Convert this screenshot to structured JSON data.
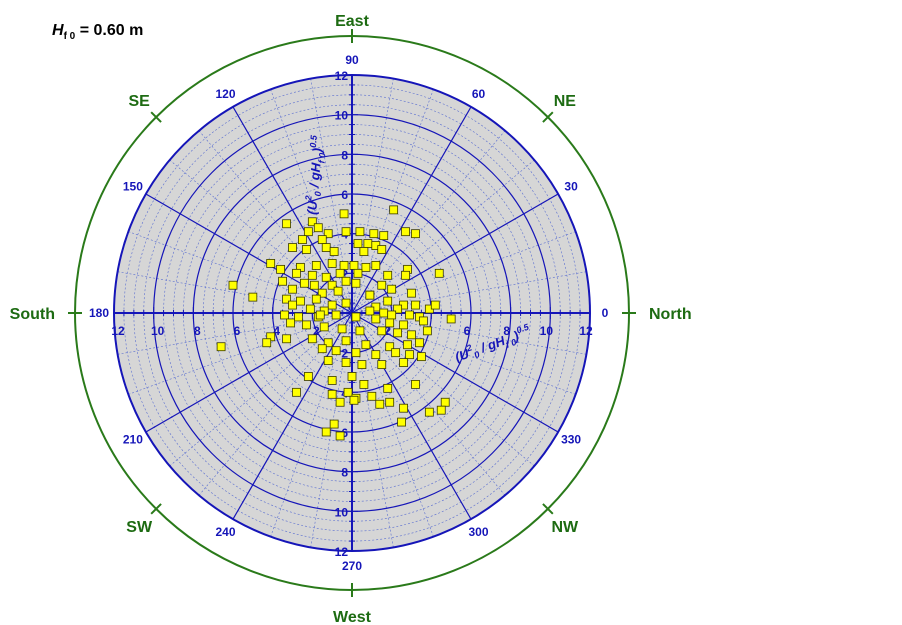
{
  "header": {
    "h_symbol": "H",
    "h_sub": "f 0",
    "h_value": "= 0.60 m"
  },
  "chart_data": {
    "type": "scatter",
    "coordinate_system": "polar",
    "title": "",
    "radial_axis_label": "(U²₀ / gH_f0)^0.5",
    "radial_range": [
      0,
      12
    ],
    "radial_major_ticks": [
      2,
      4,
      6,
      8,
      10,
      12
    ],
    "radial_tick_labels": [
      "2",
      "4",
      "6",
      "8",
      "10",
      "12"
    ],
    "radial_minor_step": 0.5,
    "angle_ticks": [
      0,
      30,
      60,
      90,
      120,
      150,
      180,
      210,
      240,
      270,
      300,
      330
    ],
    "angle_tick_labels": [
      "0",
      "30",
      "60",
      "90",
      "120",
      "150",
      "180",
      "210",
      "240",
      "270",
      "300",
      "330"
    ],
    "angle_minor_step": 10,
    "compass": [
      {
        "label": "North",
        "angle": 0
      },
      {
        "label": "NE",
        "angle": 45
      },
      {
        "label": "East",
        "angle": 90
      },
      {
        "label": "SE",
        "angle": 135
      },
      {
        "label": "South",
        "angle": 180
      },
      {
        "label": "SW",
        "angle": 225
      },
      {
        "label": "West",
        "angle": 270
      },
      {
        "label": "NW",
        "angle": 315
      }
    ],
    "grid": true,
    "colors": {
      "background_fill": "#d6d6d6",
      "major_grid": "#1515b8",
      "minor_grid": "#5a6ed0",
      "compass_ring": "#2a7a1a",
      "compass_label": "#1d6b12",
      "marker_fill": "#ffff00",
      "marker_stroke": "#3a3a00"
    },
    "series": [
      {
        "marker": "square",
        "points": [
          {
            "x": 2.1,
            "y": 5.2
          },
          {
            "x": -0.4,
            "y": 5.0
          },
          {
            "x": -2.0,
            "y": 4.6
          },
          {
            "x": -3.3,
            "y": 4.5
          },
          {
            "x": -1.7,
            "y": 4.3
          },
          {
            "x": -2.2,
            "y": 4.1
          },
          {
            "x": -1.2,
            "y": 4.0
          },
          {
            "x": -0.3,
            "y": 4.1
          },
          {
            "x": 0.4,
            "y": 4.1
          },
          {
            "x": 1.1,
            "y": 4.0
          },
          {
            "x": 1.6,
            "y": 3.9
          },
          {
            "x": 3.2,
            "y": 4.0
          },
          {
            "x": 2.7,
            "y": 4.1
          },
          {
            "x": -1.5,
            "y": 3.7
          },
          {
            "x": -2.5,
            "y": 3.7
          },
          {
            "x": 0.8,
            "y": 3.5
          },
          {
            "x": 1.2,
            "y": 3.4
          },
          {
            "x": 0.3,
            "y": 3.5
          },
          {
            "x": -3.0,
            "y": 3.3
          },
          {
            "x": -2.3,
            "y": 3.2
          },
          {
            "x": -1.3,
            "y": 3.3
          },
          {
            "x": -0.9,
            "y": 3.1
          },
          {
            "x": 0.6,
            "y": 3.1
          },
          {
            "x": 1.5,
            "y": 3.2
          },
          {
            "x": -4.1,
            "y": 2.5
          },
          {
            "x": -3.6,
            "y": 2.2
          },
          {
            "x": -2.6,
            "y": 2.3
          },
          {
            "x": -1.8,
            "y": 2.4
          },
          {
            "x": -1.0,
            "y": 2.5
          },
          {
            "x": -0.4,
            "y": 2.4
          },
          {
            "x": 0.1,
            "y": 2.4
          },
          {
            "x": 0.7,
            "y": 2.3
          },
          {
            "x": 1.2,
            "y": 2.4
          },
          {
            "x": 2.8,
            "y": 2.2
          },
          {
            "x": 4.4,
            "y": 2.0
          },
          {
            "x": -2.8,
            "y": 2.0
          },
          {
            "x": -2.0,
            "y": 1.9
          },
          {
            "x": -1.3,
            "y": 1.8
          },
          {
            "x": -0.6,
            "y": 2.0
          },
          {
            "x": 0.3,
            "y": 2.0
          },
          {
            "x": 1.8,
            "y": 1.9
          },
          {
            "x": 2.7,
            "y": 1.9
          },
          {
            "x": -3.5,
            "y": 1.6
          },
          {
            "x": -2.4,
            "y": 1.5
          },
          {
            "x": -1.9,
            "y": 1.4
          },
          {
            "x": -1.0,
            "y": 1.4
          },
          {
            "x": -0.3,
            "y": 1.6
          },
          {
            "x": 0.2,
            "y": 1.5
          },
          {
            "x": 1.5,
            "y": 1.4
          },
          {
            "x": 2.0,
            "y": 1.2
          },
          {
            "x": 3.0,
            "y": 1.0
          },
          {
            "x": -6.0,
            "y": 1.4
          },
          {
            "x": -3.0,
            "y": 1.2
          },
          {
            "x": -1.5,
            "y": 1.0
          },
          {
            "x": -0.7,
            "y": 1.1
          },
          {
            "x": 0.9,
            "y": 0.9
          },
          {
            "x": 1.8,
            "y": 0.6
          },
          {
            "x": 2.6,
            "y": 0.4
          },
          {
            "x": -5.0,
            "y": 0.8
          },
          {
            "x": -3.3,
            "y": 0.7
          },
          {
            "x": -2.6,
            "y": 0.6
          },
          {
            "x": -1.8,
            "y": 0.7
          },
          {
            "x": -1.0,
            "y": 0.4
          },
          {
            "x": -0.3,
            "y": 0.5
          },
          {
            "x": 1.2,
            "y": 0.3
          },
          {
            "x": 2.3,
            "y": 0.2
          },
          {
            "x": 3.2,
            "y": 0.4
          },
          {
            "x": 3.9,
            "y": 0.2
          },
          {
            "x": -3.0,
            "y": 0.4
          },
          {
            "x": -2.1,
            "y": 0.2
          },
          {
            "x": -1.4,
            "y": 0.1
          },
          {
            "x": 0.9,
            "y": 0.1
          },
          {
            "x": 1.6,
            "y": 0.0
          },
          {
            "x": 2.0,
            "y": -0.1
          },
          {
            "x": 2.9,
            "y": -0.1
          },
          {
            "x": 3.4,
            "y": -0.2
          },
          {
            "x": 4.2,
            "y": 0.4
          },
          {
            "x": -3.4,
            "y": -0.1
          },
          {
            "x": -2.7,
            "y": -0.2
          },
          {
            "x": -1.7,
            "y": -0.2
          },
          {
            "x": -0.8,
            "y": -0.1
          },
          {
            "x": 0.2,
            "y": -0.2
          },
          {
            "x": 1.2,
            "y": -0.3
          },
          {
            "x": 1.9,
            "y": -0.5
          },
          {
            "x": 2.6,
            "y": -0.6
          },
          {
            "x": 3.6,
            "y": -0.4
          },
          {
            "x": 5.0,
            "y": -0.3
          },
          {
            "x": -3.1,
            "y": -0.5
          },
          {
            "x": -2.3,
            "y": -0.6
          },
          {
            "x": -1.4,
            "y": -0.7
          },
          {
            "x": -0.5,
            "y": -0.8
          },
          {
            "x": 0.4,
            "y": -0.9
          },
          {
            "x": 1.5,
            "y": -0.9
          },
          {
            "x": 2.3,
            "y": -1.0
          },
          {
            "x": 3.0,
            "y": -1.1
          },
          {
            "x": 3.8,
            "y": -0.9
          },
          {
            "x": -4.1,
            "y": -1.2
          },
          {
            "x": -3.3,
            "y": -1.3
          },
          {
            "x": -2.0,
            "y": -1.3
          },
          {
            "x": -1.2,
            "y": -1.5
          },
          {
            "x": -0.3,
            "y": -1.4
          },
          {
            "x": 0.7,
            "y": -1.6
          },
          {
            "x": 1.9,
            "y": -1.7
          },
          {
            "x": 2.8,
            "y": -1.6
          },
          {
            "x": 3.4,
            "y": -1.5
          },
          {
            "x": -6.6,
            "y": -1.7
          },
          {
            "x": -4.3,
            "y": -1.5
          },
          {
            "x": -1.5,
            "y": -1.8
          },
          {
            "x": -0.8,
            "y": -1.9
          },
          {
            "x": 0.2,
            "y": -2.0
          },
          {
            "x": 1.2,
            "y": -2.1
          },
          {
            "x": 2.2,
            "y": -2.0
          },
          {
            "x": 2.9,
            "y": -2.1
          },
          {
            "x": 3.5,
            "y": -2.2
          },
          {
            "x": -1.2,
            "y": -2.4
          },
          {
            "x": -0.3,
            "y": -2.5
          },
          {
            "x": 0.5,
            "y": -2.6
          },
          {
            "x": 1.5,
            "y": -2.6
          },
          {
            "x": 2.6,
            "y": -2.5
          },
          {
            "x": -2.2,
            "y": -3.2
          },
          {
            "x": -1.0,
            "y": -3.4
          },
          {
            "x": 0.6,
            "y": -3.6
          },
          {
            "x": 1.8,
            "y": -3.8
          },
          {
            "x": 3.2,
            "y": -3.6
          },
          {
            "x": -2.8,
            "y": -4.0
          },
          {
            "x": -1.0,
            "y": -4.1
          },
          {
            "x": -0.2,
            "y": -4.0
          },
          {
            "x": 1.0,
            "y": -4.2
          },
          {
            "x": 1.9,
            "y": -4.5
          },
          {
            "x": 0.2,
            "y": -4.3
          },
          {
            "x": 0.1,
            "y": -4.4
          },
          {
            "x": -0.6,
            "y": -4.5
          },
          {
            "x": 1.4,
            "y": -4.6
          },
          {
            "x": 2.6,
            "y": -4.8
          },
          {
            "x": 4.7,
            "y": -4.5
          },
          {
            "x": 3.9,
            "y": -5.0
          },
          {
            "x": 4.5,
            "y": -4.9
          },
          {
            "x": 2.5,
            "y": -5.5
          },
          {
            "x": -1.3,
            "y": -6.0
          },
          {
            "x": -0.6,
            "y": -6.2
          },
          {
            "x": -0.9,
            "y": -5.6
          },
          {
            "x": 0.0,
            "y": -3.2
          },
          {
            "x": -1.6,
            "y": -0.1
          },
          {
            "x": 0.9,
            "y": 0.9
          }
        ]
      }
    ]
  }
}
